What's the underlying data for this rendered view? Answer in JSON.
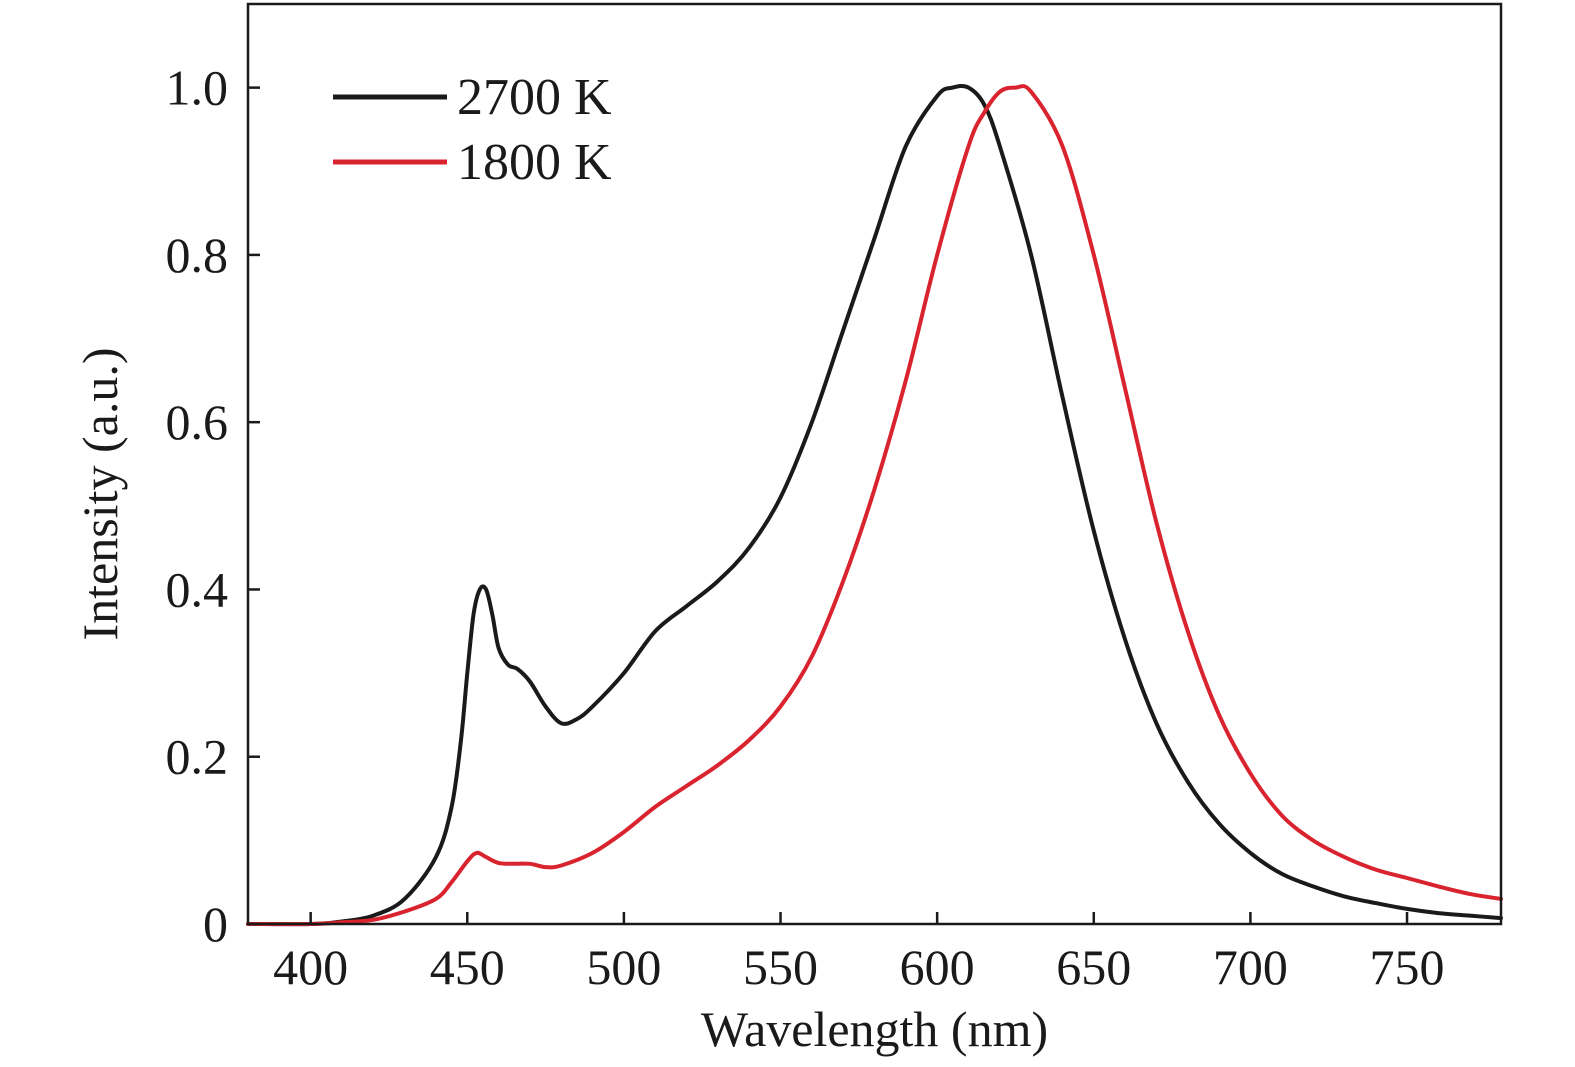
{
  "chart_data": {
    "type": "line",
    "xlabel": "Wavelength (nm)",
    "ylabel": "Intensity (a.u.)",
    "xlim": [
      380,
      780
    ],
    "ylim": [
      0,
      1.1
    ],
    "x_ticks": [
      400,
      450,
      500,
      550,
      600,
      650,
      700,
      750
    ],
    "x_tick_labels": [
      "400",
      "450",
      "500",
      "550",
      "600",
      "650",
      "700",
      "750"
    ],
    "y_ticks": [
      0,
      0.2,
      0.4,
      0.6,
      0.8,
      1.0
    ],
    "y_tick_labels": [
      "0",
      "0.2",
      "0.4",
      "0.6",
      "0.8",
      "1.0"
    ],
    "grid": false,
    "legend_position": "top-left",
    "series": [
      {
        "name": "2700 K",
        "color": "#1a1a1a",
        "x": [
          380,
          400,
          410,
          420,
          430,
          440,
          445,
          448,
          450,
          452,
          454,
          456,
          458,
          460,
          463,
          466,
          470,
          475,
          480,
          485,
          490,
          500,
          510,
          520,
          530,
          540,
          550,
          560,
          570,
          580,
          590,
          600,
          605,
          610,
          615,
          620,
          630,
          640,
          650,
          660,
          670,
          680,
          690,
          700,
          710,
          720,
          730,
          740,
          750,
          760,
          770,
          780
        ],
        "y": [
          0.0,
          0.0,
          0.003,
          0.01,
          0.03,
          0.08,
          0.14,
          0.22,
          0.3,
          0.37,
          0.4,
          0.4,
          0.37,
          0.33,
          0.31,
          0.305,
          0.29,
          0.26,
          0.24,
          0.245,
          0.26,
          0.3,
          0.35,
          0.38,
          0.41,
          0.45,
          0.51,
          0.6,
          0.71,
          0.82,
          0.93,
          0.99,
          1.0,
          1.0,
          0.98,
          0.93,
          0.8,
          0.63,
          0.47,
          0.34,
          0.24,
          0.17,
          0.12,
          0.085,
          0.06,
          0.045,
          0.033,
          0.025,
          0.018,
          0.013,
          0.01,
          0.007
        ]
      },
      {
        "name": "1800 K",
        "color": "#d9232e",
        "x": [
          380,
          400,
          410,
          420,
          430,
          440,
          445,
          450,
          453,
          456,
          460,
          465,
          470,
          475,
          480,
          490,
          500,
          510,
          520,
          530,
          540,
          550,
          560,
          570,
          580,
          590,
          600,
          610,
          615,
          620,
          625,
          630,
          640,
          650,
          660,
          670,
          680,
          690,
          700,
          710,
          720,
          730,
          740,
          750,
          760,
          770,
          780
        ],
        "y": [
          0.0,
          0.0,
          0.002,
          0.005,
          0.015,
          0.03,
          0.05,
          0.075,
          0.085,
          0.08,
          0.073,
          0.072,
          0.072,
          0.068,
          0.07,
          0.085,
          0.11,
          0.14,
          0.165,
          0.19,
          0.22,
          0.26,
          0.32,
          0.41,
          0.52,
          0.65,
          0.8,
          0.93,
          0.97,
          0.995,
          1.0,
          0.995,
          0.93,
          0.8,
          0.64,
          0.48,
          0.35,
          0.25,
          0.18,
          0.13,
          0.1,
          0.08,
          0.065,
          0.055,
          0.045,
          0.036,
          0.03
        ]
      }
    ]
  }
}
